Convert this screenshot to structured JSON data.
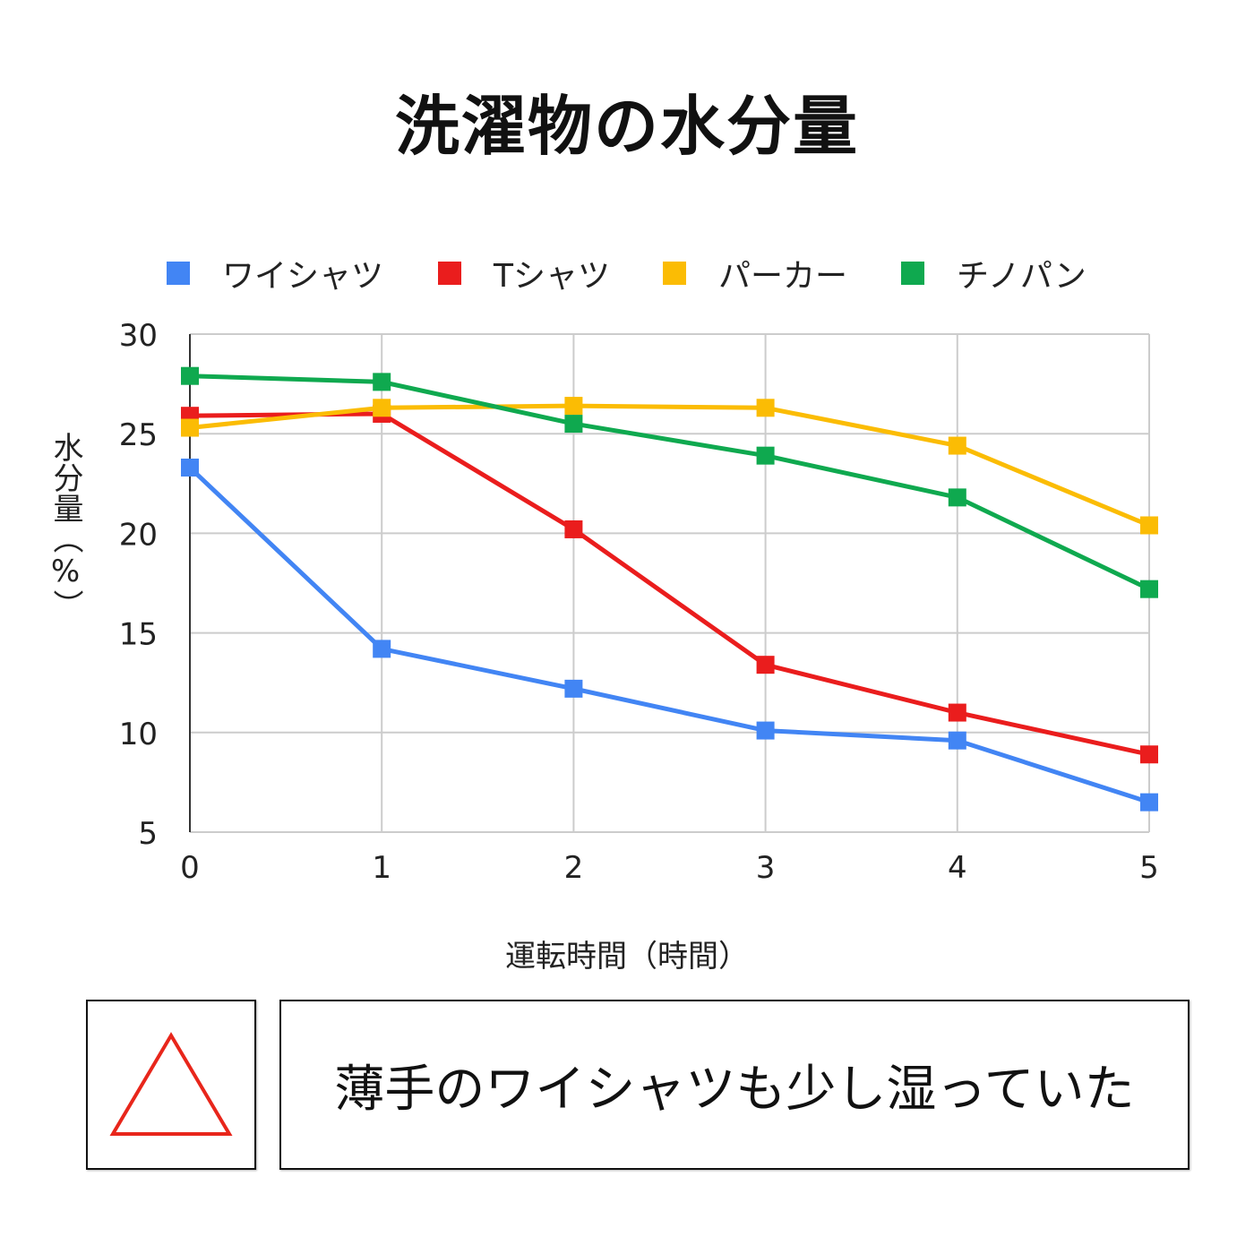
{
  "title": "洗濯物の水分量",
  "chart_data": {
    "type": "line",
    "title": "洗濯物の水分量",
    "xlabel": "運転時間（時間）",
    "ylabel": "水分量（%）",
    "x": [
      0,
      1,
      2,
      3,
      4,
      5
    ],
    "x_ticks": [
      "0",
      "1",
      "2",
      "3",
      "4",
      "5"
    ],
    "y_ticks": [
      "30",
      "25",
      "20",
      "15",
      "10",
      "5"
    ],
    "xlim": [
      0,
      5
    ],
    "ylim": [
      5,
      30
    ],
    "grid": true,
    "legend_position": "top",
    "series": [
      {
        "name": "ワイシャツ",
        "color": "#4285F4",
        "values": [
          23.3,
          14.2,
          12.2,
          10.1,
          9.6,
          6.5
        ]
      },
      {
        "name": "Tシャツ",
        "color": "#EA1D1D",
        "values": [
          25.9,
          26.0,
          20.2,
          13.4,
          11.0,
          8.9
        ]
      },
      {
        "name": "パーカー",
        "color": "#FBBC04",
        "values": [
          25.3,
          26.3,
          26.4,
          26.3,
          24.4,
          20.4
        ]
      },
      {
        "name": "チノパン",
        "color": "#0FA94F",
        "values": [
          27.9,
          27.6,
          25.5,
          23.9,
          21.8,
          17.2
        ]
      }
    ]
  },
  "rating": {
    "symbol": "triangle",
    "color": "#E8261B"
  },
  "comment": "薄手のワイシャツも少し湿っていた"
}
